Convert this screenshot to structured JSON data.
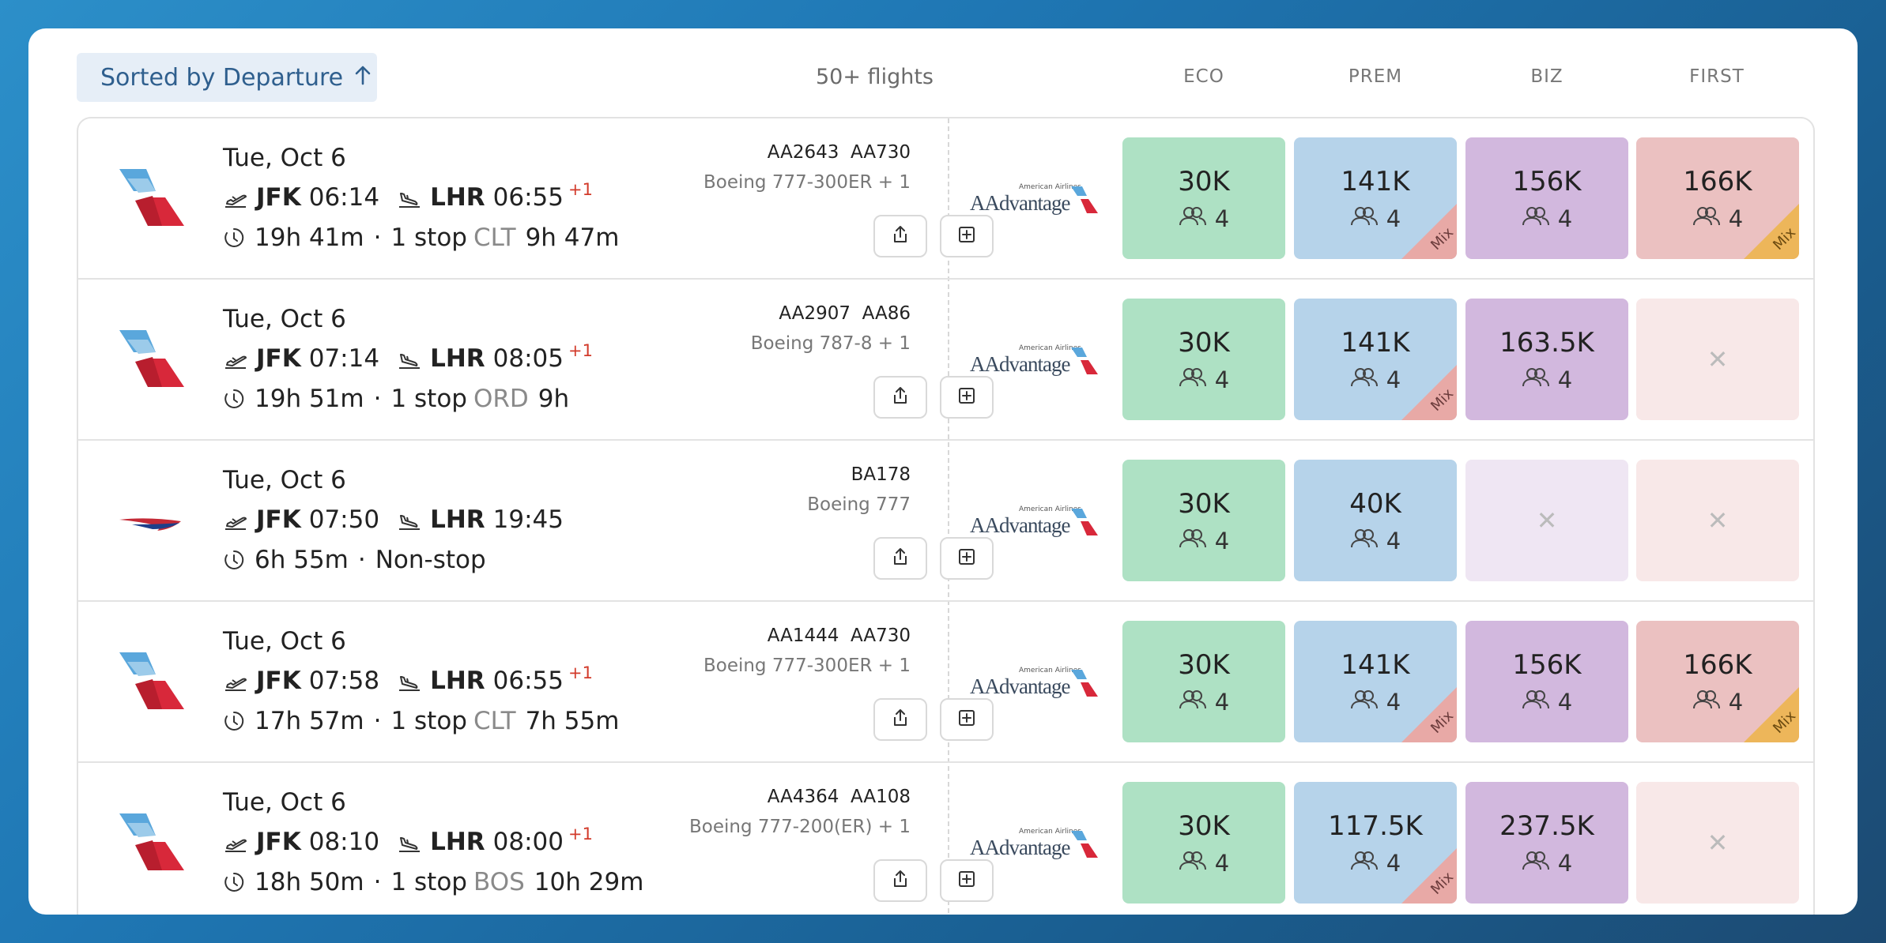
{
  "header": {
    "sort_label": "Sorted by Departure",
    "sort_icon": "arrow-up-icon",
    "flight_count": "50+ flights",
    "columns": [
      "ECO",
      "PREM",
      "BIZ",
      "FIRST"
    ]
  },
  "program": {
    "small": "American Airlines",
    "big": "AAdvantage"
  },
  "colors": {
    "eco": "#aee1c4",
    "prem": "#b6d3ea",
    "biz": "#d2b8de",
    "first": "#ebc1c1",
    "eco_na": "#e6f6ee",
    "prem_na": "#e8f1f9",
    "biz_na": "#efe6f3",
    "first_na": "#f8e8e8",
    "mix_prem": "#e8a9a6",
    "mix_first": "#edb65a"
  },
  "flights": [
    {
      "date": "Tue, Oct 6",
      "origin": "JFK",
      "dep": "06:14",
      "dest": "LHR",
      "arr": "06:55",
      "plus": "+1",
      "duration": "19h 41m",
      "stops": "1 stop",
      "via": "CLT",
      "layover": "9h 47m",
      "flight_numbers": "AA2643  AA730",
      "aircraft": "Boeing 777-300ER + 1",
      "airline_logo": "aa-tail-icon",
      "fares": [
        {
          "pts": "30K",
          "seats": "4",
          "mix": ""
        },
        {
          "pts": "141K",
          "seats": "4",
          "mix": "Mix"
        },
        {
          "pts": "156K",
          "seats": "4",
          "mix": ""
        },
        {
          "pts": "166K",
          "seats": "4",
          "mix": "Mix"
        }
      ]
    },
    {
      "date": "Tue, Oct 6",
      "origin": "JFK",
      "dep": "07:14",
      "dest": "LHR",
      "arr": "08:05",
      "plus": "+1",
      "duration": "19h 51m",
      "stops": "1 stop",
      "via": "ORD",
      "layover": "9h",
      "flight_numbers": "AA2907  AA86",
      "aircraft": "Boeing 787-8 + 1",
      "airline_logo": "aa-tail-icon",
      "fares": [
        {
          "pts": "30K",
          "seats": "4",
          "mix": ""
        },
        {
          "pts": "141K",
          "seats": "4",
          "mix": "Mix"
        },
        {
          "pts": "163.5K",
          "seats": "4",
          "mix": ""
        },
        null
      ]
    },
    {
      "date": "Tue, Oct 6",
      "origin": "JFK",
      "dep": "07:50",
      "dest": "LHR",
      "arr": "19:45",
      "plus": "",
      "duration": "6h 55m",
      "stops": "Non-stop",
      "via": "",
      "layover": "",
      "flight_numbers": "BA178",
      "aircraft": "Boeing 777",
      "airline_logo": "ba-speedmarque-icon",
      "fares": [
        {
          "pts": "30K",
          "seats": "4",
          "mix": ""
        },
        {
          "pts": "40K",
          "seats": "4",
          "mix": ""
        },
        null,
        null
      ]
    },
    {
      "date": "Tue, Oct 6",
      "origin": "JFK",
      "dep": "07:58",
      "dest": "LHR",
      "arr": "06:55",
      "plus": "+1",
      "duration": "17h 57m",
      "stops": "1 stop",
      "via": "CLT",
      "layover": "7h 55m",
      "flight_numbers": "AA1444  AA730",
      "aircraft": "Boeing 777-300ER + 1",
      "airline_logo": "aa-tail-icon",
      "fares": [
        {
          "pts": "30K",
          "seats": "4",
          "mix": ""
        },
        {
          "pts": "141K",
          "seats": "4",
          "mix": "Mix"
        },
        {
          "pts": "156K",
          "seats": "4",
          "mix": ""
        },
        {
          "pts": "166K",
          "seats": "4",
          "mix": "Mix"
        }
      ]
    },
    {
      "date": "Tue, Oct 6",
      "origin": "JFK",
      "dep": "08:10",
      "dest": "LHR",
      "arr": "08:00",
      "plus": "+1",
      "duration": "18h 50m",
      "stops": "1 stop",
      "via": "BOS",
      "layover": "10h 29m",
      "flight_numbers": "AA4364  AA108",
      "aircraft": "Boeing 777-200(ER) + 1",
      "airline_logo": "aa-tail-icon",
      "fares": [
        {
          "pts": "30K",
          "seats": "4",
          "mix": ""
        },
        {
          "pts": "117.5K",
          "seats": "4",
          "mix": "Mix"
        },
        {
          "pts": "237.5K",
          "seats": "4",
          "mix": ""
        },
        null
      ]
    }
  ]
}
